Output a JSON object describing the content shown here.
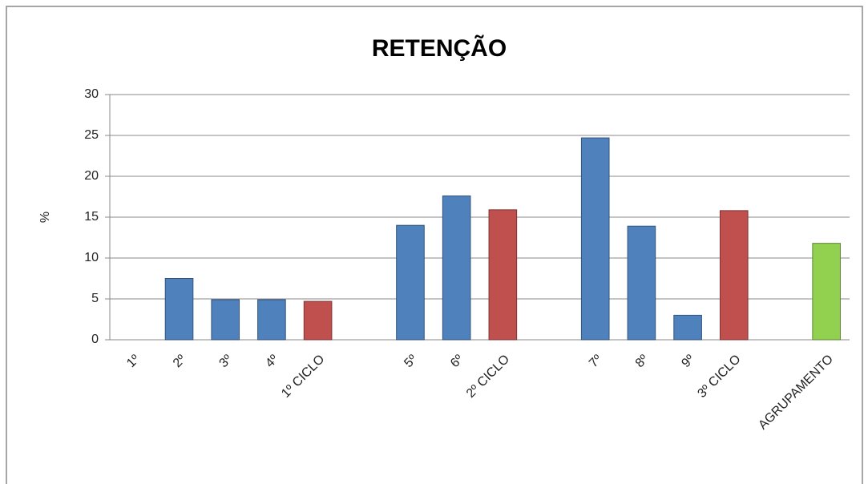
{
  "chart_data": {
    "type": "bar",
    "title": "RETENÇÃO",
    "y_label": "%",
    "categories": [
      "1º",
      "2º",
      "3º",
      "4º",
      "1º CICLO",
      null,
      "5º",
      "6º",
      "2º CICLO",
      null,
      "7º",
      "8º",
      "9º",
      "3º CICLO",
      null,
      "AGRUPAMENTO"
    ],
    "values": [
      0,
      7.5,
      4.9,
      4.9,
      4.7,
      null,
      14,
      17.6,
      15.9,
      null,
      24.7,
      13.9,
      3,
      15.8,
      null,
      11.8
    ],
    "colors": [
      "#4f81bd",
      "#4f81bd",
      "#4f81bd",
      "#4f81bd",
      "#c0504d",
      null,
      "#4f81bd",
      "#4f81bd",
      "#c0504d",
      null,
      "#4f81bd",
      "#4f81bd",
      "#4f81bd",
      "#c0504d",
      null,
      "#92d050"
    ],
    "ylim": [
      0,
      30
    ],
    "yticks": [
      0,
      5,
      10,
      15,
      20,
      25,
      30
    ],
    "grid": true
  }
}
